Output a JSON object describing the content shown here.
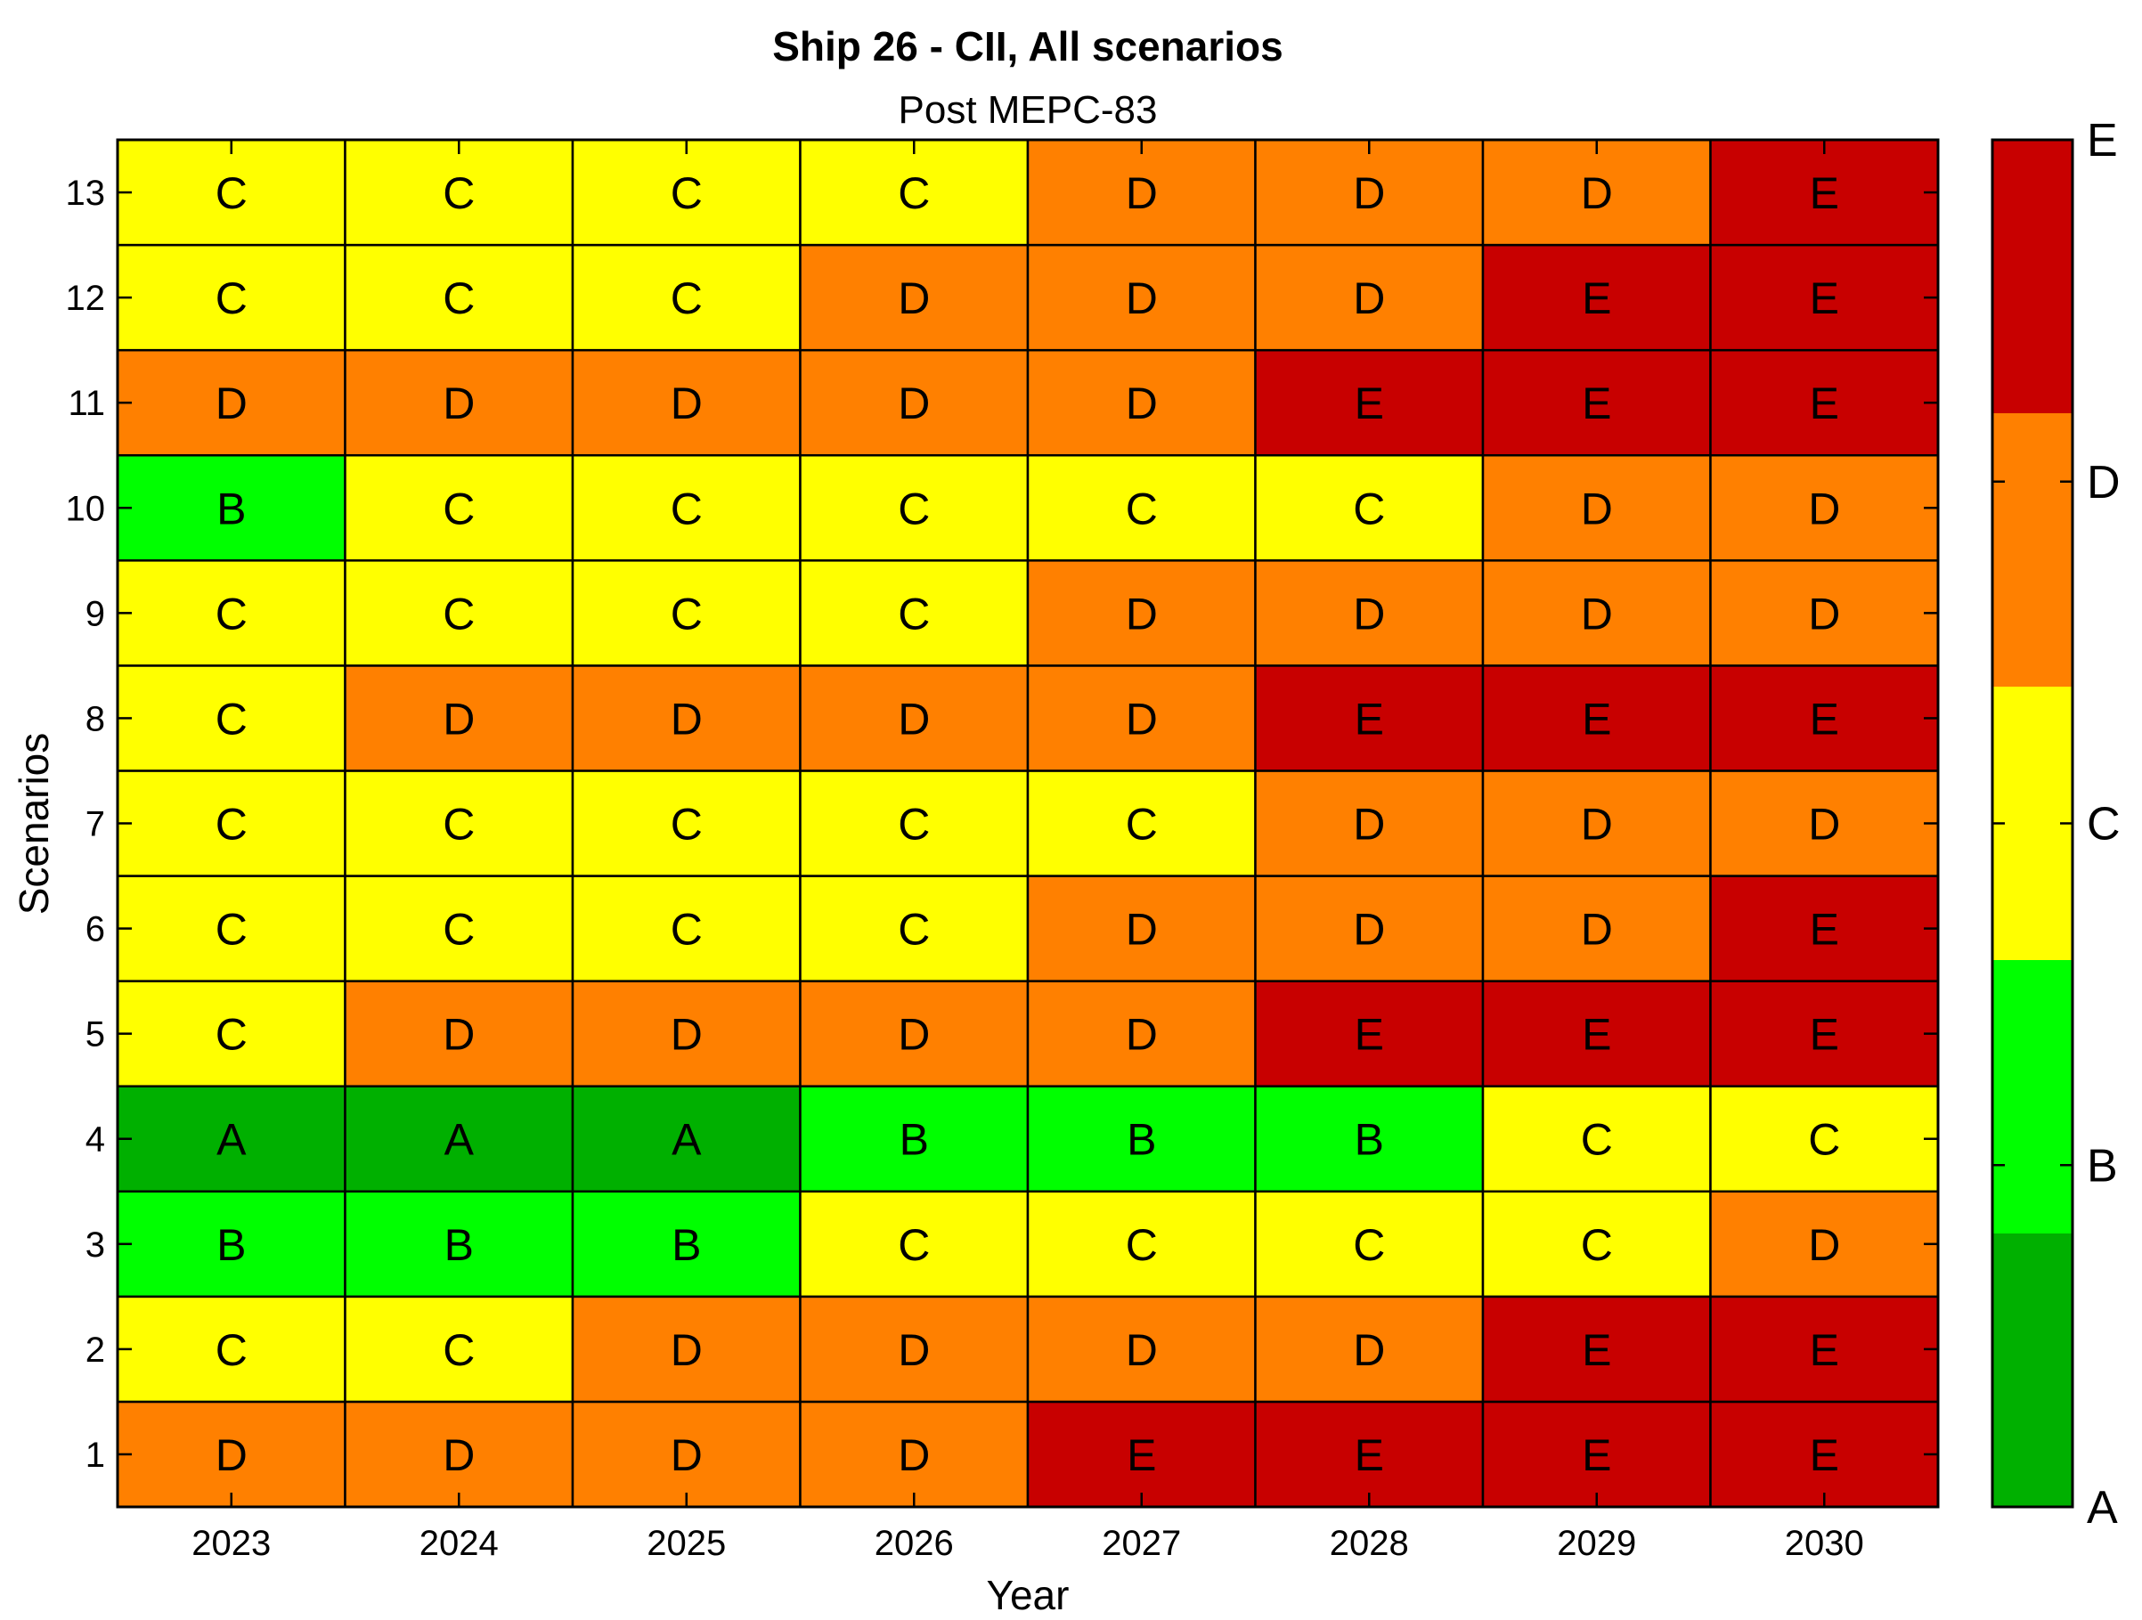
{
  "chart_data": {
    "type": "heatmap",
    "title": "Ship 26 - CII, All scenarios",
    "subtitle": "Post MEPC-83",
    "xlabel": "Year",
    "ylabel": "Scenarios",
    "x": [
      "2023",
      "2024",
      "2025",
      "2026",
      "2027",
      "2028",
      "2029",
      "2030"
    ],
    "y": [
      "1",
      "2",
      "3",
      "4",
      "5",
      "6",
      "7",
      "8",
      "9",
      "10",
      "11",
      "12",
      "13"
    ],
    "values": [
      [
        "D",
        "D",
        "D",
        "D",
        "E",
        "E",
        "E",
        "E"
      ],
      [
        "C",
        "C",
        "D",
        "D",
        "D",
        "D",
        "E",
        "E"
      ],
      [
        "B",
        "B",
        "B",
        "C",
        "C",
        "C",
        "C",
        "D"
      ],
      [
        "A",
        "A",
        "A",
        "B",
        "B",
        "B",
        "C",
        "C"
      ],
      [
        "C",
        "D",
        "D",
        "D",
        "D",
        "E",
        "E",
        "E"
      ],
      [
        "C",
        "C",
        "C",
        "C",
        "D",
        "D",
        "D",
        "E"
      ],
      [
        "C",
        "C",
        "C",
        "C",
        "C",
        "D",
        "D",
        "D"
      ],
      [
        "C",
        "D",
        "D",
        "D",
        "D",
        "E",
        "E",
        "E"
      ],
      [
        "C",
        "C",
        "C",
        "C",
        "D",
        "D",
        "D",
        "D"
      ],
      [
        "B",
        "C",
        "C",
        "C",
        "C",
        "C",
        "D",
        "D"
      ],
      [
        "D",
        "D",
        "D",
        "D",
        "D",
        "E",
        "E",
        "E"
      ],
      [
        "C",
        "C",
        "C",
        "D",
        "D",
        "D",
        "E",
        "E"
      ],
      [
        "C",
        "C",
        "C",
        "C",
        "D",
        "D",
        "D",
        "E"
      ]
    ],
    "colorbar": {
      "labels": [
        "A",
        "B",
        "C",
        "D",
        "E"
      ],
      "colors": {
        "A": "#00b000",
        "B": "#00ff00",
        "C": "#ffff00",
        "D": "#ff8000",
        "E": "#c80000"
      }
    },
    "grid": false
  }
}
